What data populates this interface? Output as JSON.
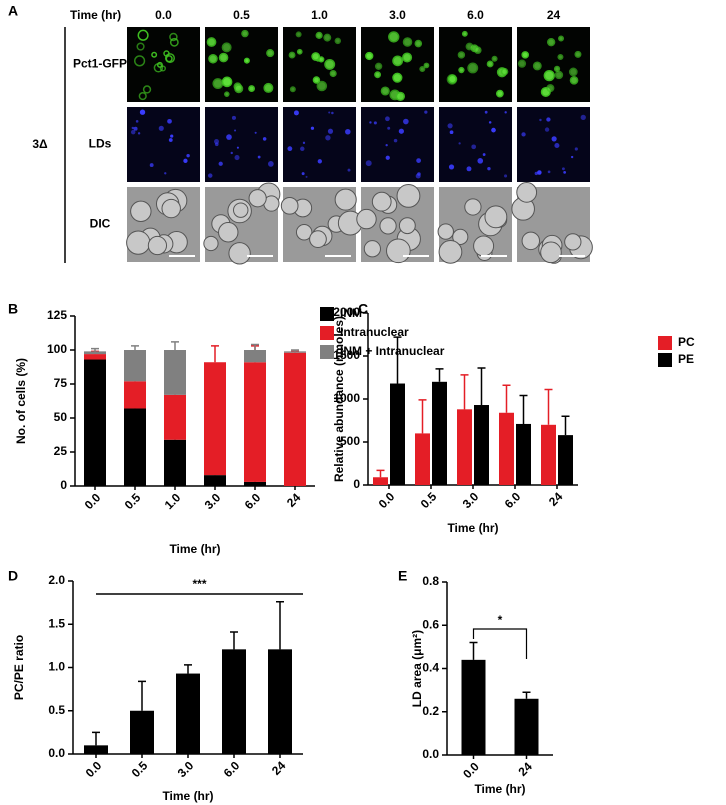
{
  "panel_a": {
    "label": "A",
    "time_header": "Time (hr)",
    "times": [
      "0.0",
      "0.5",
      "1.0",
      "3.0",
      "6.0",
      "24"
    ],
    "rows": [
      "Pct1-GFP",
      "LDs",
      "DIC"
    ],
    "strain": "3Δ"
  },
  "chart_data": [
    {
      "panel": "B",
      "type": "stacked_bar",
      "y_label": "No. of cells (%)",
      "x_label": "Time (hr)",
      "categories": [
        "0.0",
        "0.5",
        "1.0",
        "3.0",
        "6.0",
        "24"
      ],
      "series": [
        {
          "name": "INM",
          "color": "#000000",
          "values": [
            93,
            57,
            34,
            8,
            3,
            0
          ],
          "errors": [
            2,
            4,
            3,
            1,
            1,
            0
          ]
        },
        {
          "name": "Intranuclear",
          "color": "#e41e26",
          "values": [
            4,
            20,
            33,
            83,
            88,
            98
          ],
          "errors": [
            2,
            4,
            4,
            12,
            12,
            1
          ]
        },
        {
          "name": "INM + Intranuclear",
          "color": "#808080",
          "values": [
            2,
            23,
            33,
            0,
            9,
            1
          ],
          "errors": [
            2,
            3,
            6,
            0,
            4,
            1
          ]
        }
      ],
      "ylim": [
        0,
        125
      ],
      "yticks": [
        0,
        25,
        50,
        75,
        100,
        125
      ],
      "legend": "right"
    },
    {
      "panel": "C",
      "type": "grouped_bar",
      "y_label": "Relative abundance (nmoles)",
      "x_label": "Time (hr)",
      "categories": [
        "0.0",
        "0.5",
        "3.0",
        "6.0",
        "24"
      ],
      "series": [
        {
          "name": "PC",
          "color": "#e41e26",
          "values": [
            90,
            600,
            880,
            840,
            700
          ],
          "errors": [
            80,
            390,
            400,
            320,
            410
          ]
        },
        {
          "name": "PE",
          "color": "#000000",
          "values": [
            1180,
            1200,
            930,
            710,
            580
          ],
          "errors": [
            540,
            150,
            430,
            330,
            220
          ]
        }
      ],
      "ylim": [
        0,
        2000
      ],
      "yticks": [
        0,
        500,
        1000,
        1500,
        2000
      ],
      "legend": "upper right"
    },
    {
      "panel": "D",
      "type": "bar",
      "y_label": "PC/PE ratio",
      "x_label": "Time (hr)",
      "categories": [
        "0.0",
        "0.5",
        "3.0",
        "6.0",
        "24"
      ],
      "values": [
        0.1,
        0.5,
        0.93,
        1.21,
        1.21
      ],
      "errors": [
        0.15,
        0.34,
        0.1,
        0.2,
        0.55
      ],
      "color": "#000000",
      "ylim": [
        0,
        2.0
      ],
      "yticks": [
        {
          "value": 0,
          "label": "0.0"
        },
        0.5,
        {
          "value": 1,
          "label": "1.0"
        },
        1.5,
        {
          "value": 2,
          "label": "2.0"
        }
      ],
      "annotation": "***"
    },
    {
      "panel": "E",
      "type": "bar",
      "y_label": "LD area (μm²)",
      "x_label": "Time (hr)",
      "categories": [
        "0.0",
        "24"
      ],
      "values": [
        0.44,
        0.26
      ],
      "errors": [
        0.08,
        0.03
      ],
      "color": "#000000",
      "ylim": [
        0,
        0.8
      ],
      "yticks": [
        {
          "value": 0,
          "label": "0.0"
        },
        0.2,
        0.4,
        0.6,
        0.8
      ],
      "annotation": "*"
    }
  ]
}
